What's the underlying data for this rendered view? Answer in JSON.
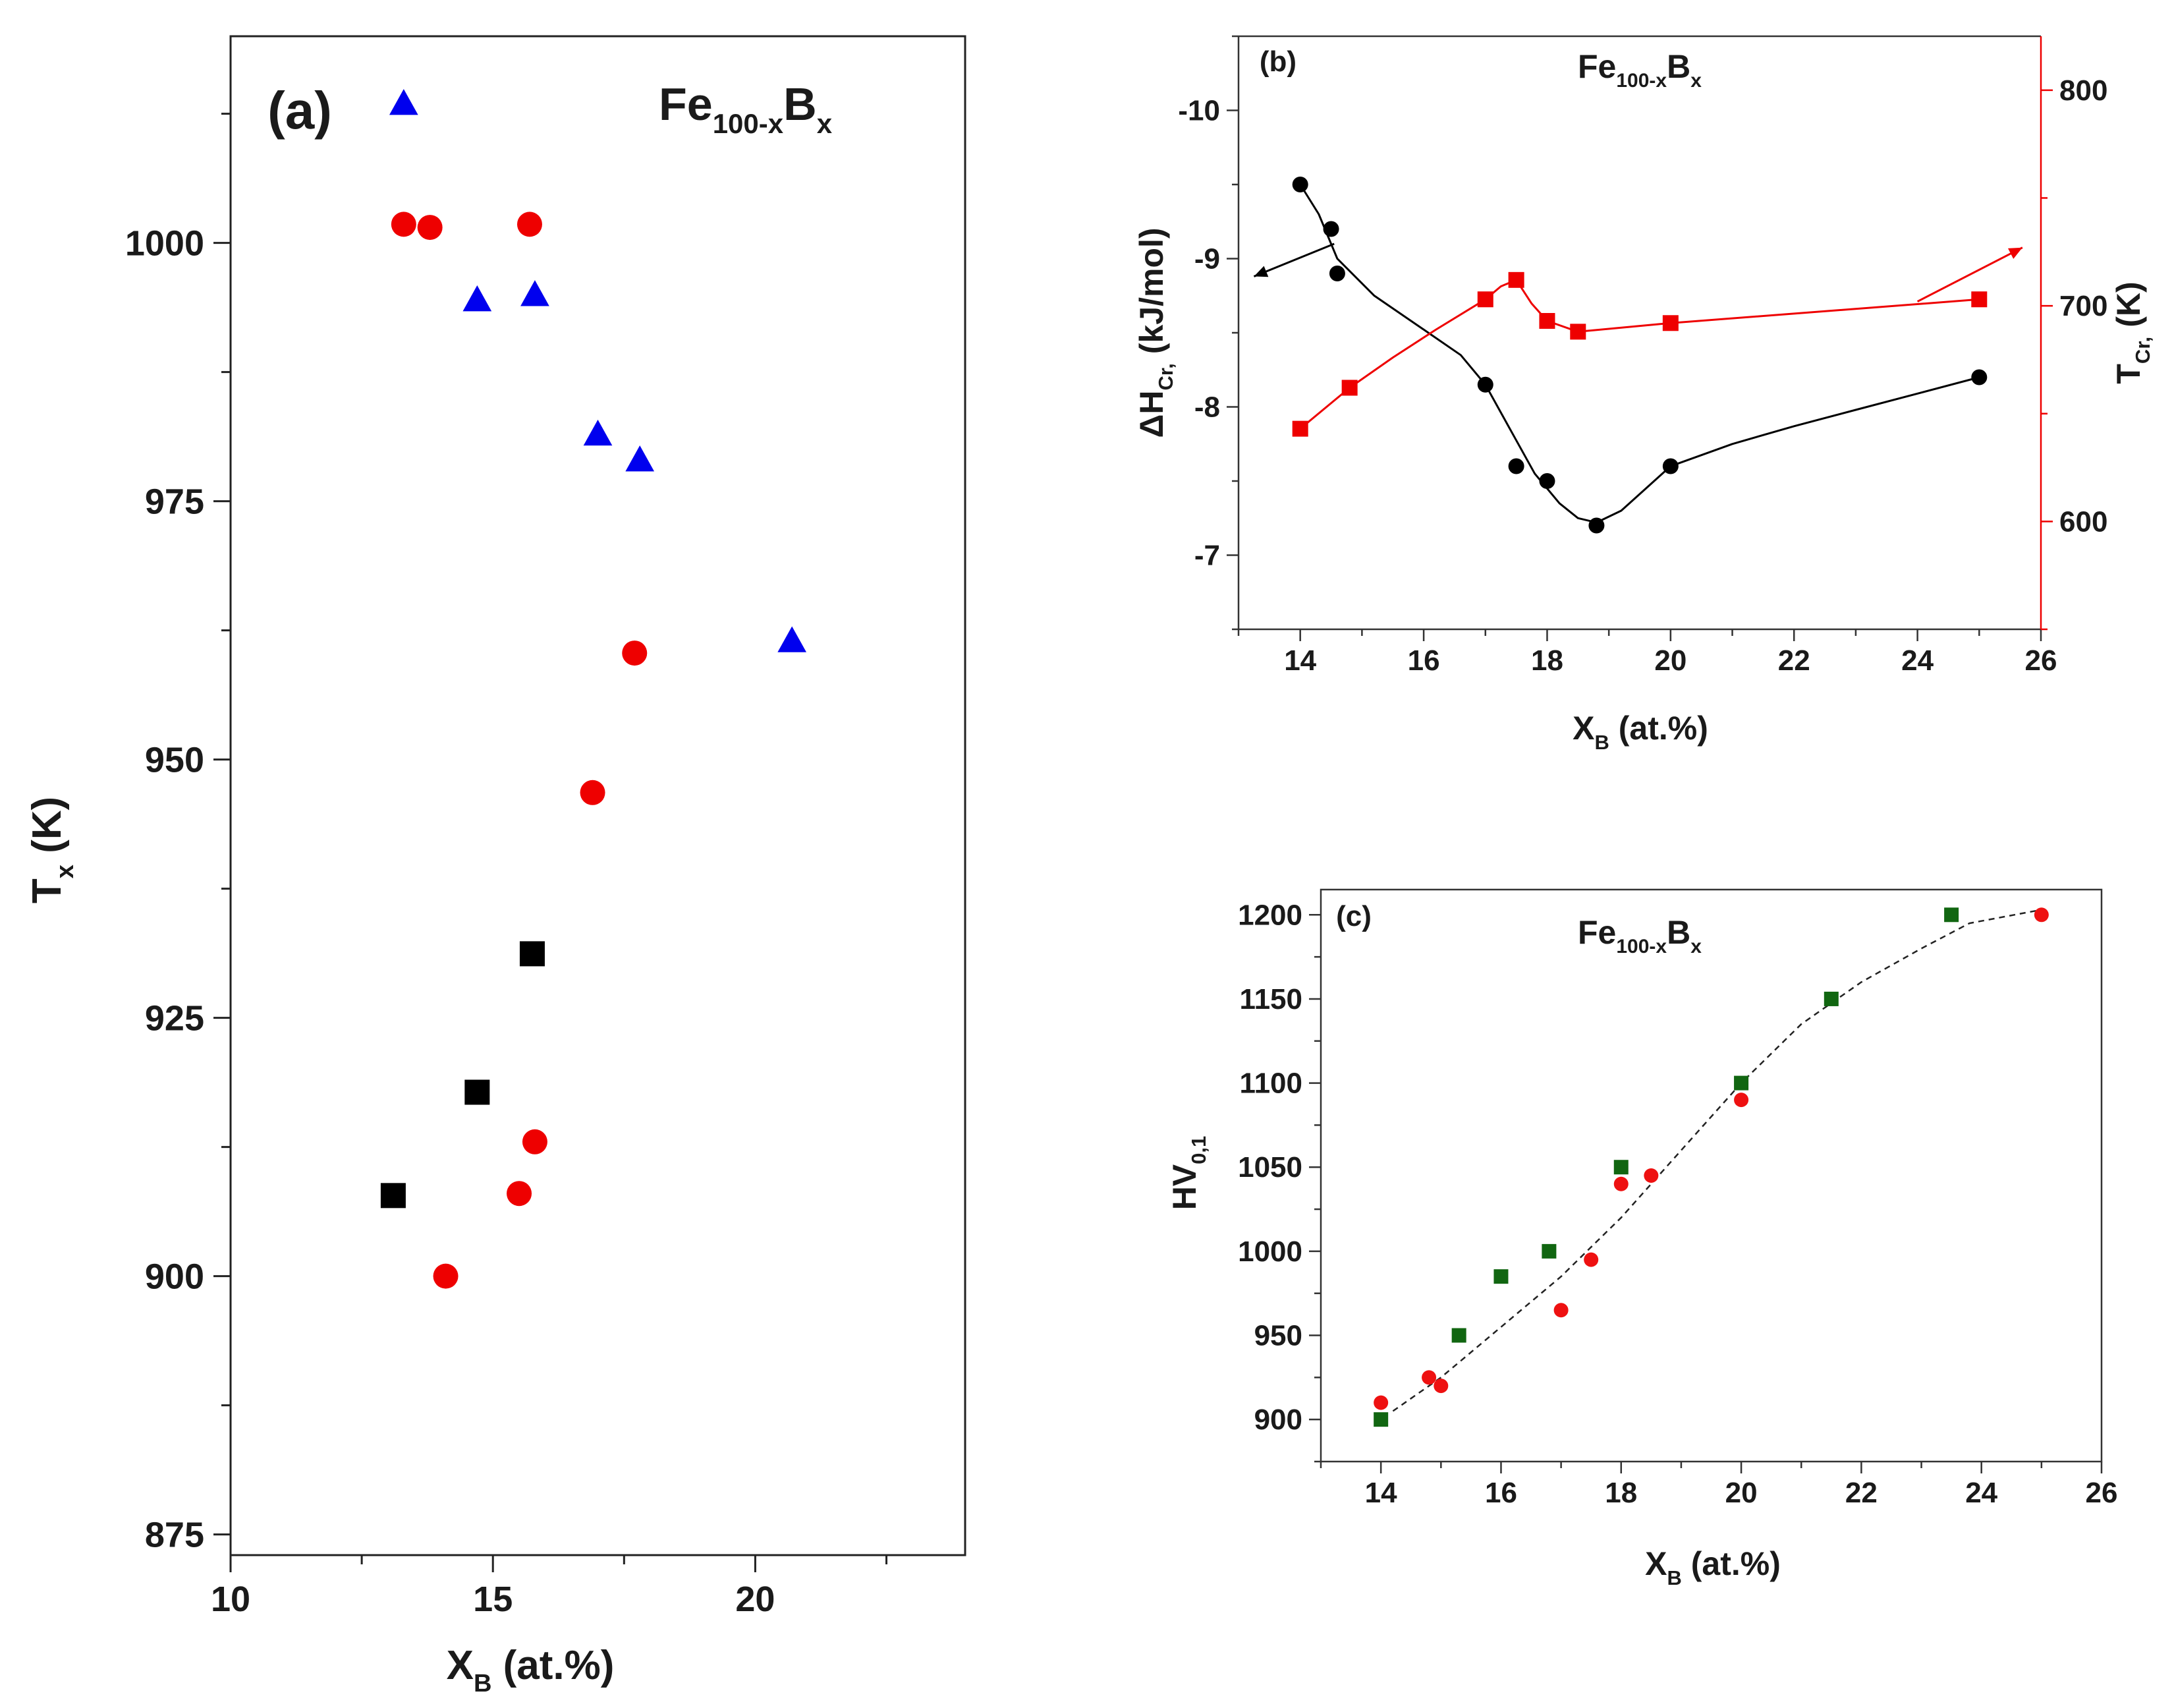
{
  "chart_data": [
    {
      "id": "a",
      "type": "scatter",
      "panel_label": "(a)",
      "annotation": {
        "main": "Fe",
        "sub1": "100-x",
        "mid": "B",
        "sub2": "x"
      },
      "xlabel": {
        "main": "X",
        "sub": "B",
        "rest": "(at.%)"
      },
      "ylabel": {
        "main": "T",
        "sub": "x",
        "rest": "(K)"
      },
      "xlim": [
        10,
        24
      ],
      "ylim": [
        873,
        1020
      ],
      "x_ticks": [
        10,
        15,
        20
      ],
      "y_ticks": [
        875,
        900,
        925,
        950,
        975,
        1000
      ],
      "series": [
        {
          "marker": "triangle",
          "color": "#0000ee",
          "x": [
            13.3,
            14.7,
            15.8,
            17.0,
            17.8,
            20.7
          ],
          "y": [
            1013.5,
            994.5,
            995.0,
            981.5,
            979.0,
            961.5
          ]
        },
        {
          "marker": "circle",
          "color": "#ee0000",
          "x": [
            13.3,
            13.8,
            15.7,
            17.7,
            16.9,
            15.8,
            15.5,
            14.1
          ],
          "y": [
            1001.8,
            1001.5,
            1001.8,
            960.3,
            946.8,
            913.0,
            908.0,
            900.0
          ]
        },
        {
          "marker": "square",
          "color": "#000000",
          "x": [
            15.75,
            14.7,
            13.1
          ],
          "y": [
            931.2,
            917.8,
            907.8
          ]
        }
      ]
    },
    {
      "id": "b",
      "type": "line",
      "panel_label": "(b)",
      "annotation": {
        "main": "Fe",
        "sub1": "100-x",
        "mid": "B",
        "sub2": "x"
      },
      "xlabel": {
        "main": "X",
        "sub": "B",
        "rest": "(at.%)"
      },
      "ylabel_left": {
        "main": "ΔH",
        "sub": "Cr,",
        "rest": "(kJ/mol)"
      },
      "ylabel_right": {
        "main": "T",
        "sub": "Cr,",
        "rest": "(K)"
      },
      "xlim": [
        13,
        26
      ],
      "ylim_left": [
        -6.5,
        -10.5
      ],
      "ylim_right": [
        550,
        825
      ],
      "x_ticks": [
        14,
        16,
        18,
        20,
        22,
        24,
        26
      ],
      "y_ticks_left": [
        -7,
        -8,
        -9,
        -10
      ],
      "y_ticks_left_text": [
        "-7",
        "-8",
        "-9",
        "-10"
      ],
      "y_ticks_right": [
        600,
        700,
        800
      ],
      "series": [
        {
          "axis": "left",
          "marker": "circle",
          "color": "#000000",
          "x": [
            14.0,
            14.5,
            14.6,
            17.0,
            17.5,
            18.0,
            18.8,
            20.0,
            25.0
          ],
          "y": [
            -9.5,
            -9.2,
            -8.9,
            -8.15,
            -7.6,
            -7.5,
            -7.2,
            -7.6,
            -8.2
          ],
          "curve_x": [
            14.0,
            14.3,
            14.6,
            15.2,
            15.9,
            16.6,
            17.0,
            17.4,
            17.8,
            18.2,
            18.5,
            18.8,
            19.2,
            19.6,
            20.0,
            21.0,
            22.0,
            23.0,
            24.0,
            25.0
          ],
          "curve_y": [
            -9.5,
            -9.3,
            -9.0,
            -8.75,
            -8.55,
            -8.35,
            -8.15,
            -7.85,
            -7.55,
            -7.35,
            -7.25,
            -7.22,
            -7.3,
            -7.45,
            -7.6,
            -7.75,
            -7.87,
            -7.98,
            -8.09,
            -8.2
          ]
        },
        {
          "axis": "right",
          "marker": "square",
          "color": "#ee0000",
          "x": [
            14.0,
            14.8,
            17.0,
            17.5,
            18.0,
            18.5,
            20.0,
            25.0
          ],
          "y": [
            643,
            662,
            703,
            712,
            693,
            688,
            692,
            703
          ],
          "curve_x": [
            14.0,
            14.8,
            15.5,
            16.2,
            17.0,
            17.25,
            17.5,
            17.75,
            18.0,
            18.5,
            20.0,
            25.0
          ],
          "curve_y": [
            643,
            662,
            676,
            689,
            703,
            709,
            712,
            701,
            693,
            688,
            692,
            703
          ]
        }
      ],
      "arrows": [
        {
          "color": "#000000",
          "from": [
            14.55,
            -9.1
          ],
          "to": [
            13.25,
            -8.88
          ]
        },
        {
          "color": "#ee0000",
          "from_axis": "right",
          "from": [
            24.0,
            702
          ],
          "to": [
            25.7,
            727
          ]
        }
      ]
    },
    {
      "id": "c",
      "type": "scatter",
      "panel_label": "(c)",
      "annotation": {
        "main": "Fe",
        "sub1": "100-x",
        "mid": "B",
        "sub2": "x"
      },
      "xlabel": {
        "main": "X",
        "sub": "B",
        "rest": "(at.%)"
      },
      "ylabel": {
        "main": "HV",
        "sub": "0,1",
        "rest": ""
      },
      "xlim": [
        13,
        26
      ],
      "ylim": [
        875,
        1215
      ],
      "x_ticks": [
        14,
        16,
        18,
        20,
        22,
        24,
        26
      ],
      "y_ticks": [
        900,
        950,
        1000,
        1050,
        1100,
        1150,
        1200
      ],
      "series": [
        {
          "marker": "square",
          "color": "#116611",
          "x": [
            14.0,
            15.3,
            16.0,
            16.8,
            18.0,
            20.0,
            21.5,
            23.5
          ],
          "y": [
            900,
            950,
            985,
            1000,
            1050,
            1100,
            1150,
            1200
          ]
        },
        {
          "marker": "circle",
          "color": "#ee1111",
          "x": [
            14.0,
            14.8,
            15.0,
            17.0,
            17.5,
            18.0,
            18.5,
            20.0,
            25.0
          ],
          "y": [
            910,
            925,
            920,
            965,
            995,
            1040,
            1045,
            1090,
            1200
          ]
        }
      ],
      "trend": {
        "color": "#222222",
        "x": [
          14.2,
          15.0,
          16.0,
          17.0,
          18.0,
          19.0,
          20.0,
          21.0,
          22.0,
          23.0,
          23.8,
          25.0
        ],
        "y": [
          905,
          925,
          955,
          985,
          1020,
          1060,
          1100,
          1135,
          1160,
          1180,
          1195,
          1203
        ]
      }
    }
  ]
}
